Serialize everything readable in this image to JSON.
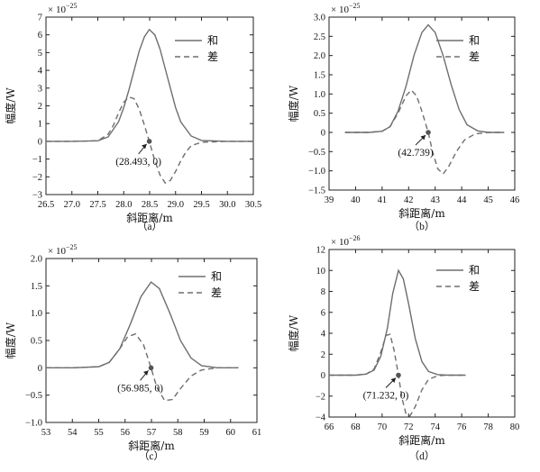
{
  "chart_data": [
    {
      "type": "line",
      "caption": "（a）",
      "xlabel": "斜距离/m",
      "ylabel": "幅度/W",
      "multiplier_base": "× 10",
      "multiplier_exp": "−25",
      "xlim": [
        26.5,
        30.5
      ],
      "ylim": [
        -3,
        7
      ],
      "xticks": [
        26.5,
        27.0,
        27.5,
        28.0,
        28.5,
        29.0,
        29.5,
        30.0,
        30.5
      ],
      "xtick_labels": [
        "26.5",
        "27.0",
        "27.5",
        "28.0",
        "28.5",
        "29.0",
        "29.5",
        "30.0",
        "30.5"
      ],
      "yticks": [
        -3,
        -2,
        -1,
        0,
        1,
        2,
        3,
        4,
        5,
        6,
        7
      ],
      "ytick_labels": [
        "−3",
        "−2",
        "−1",
        "0",
        "1",
        "2",
        "3",
        "4",
        "5",
        "6",
        "7"
      ],
      "series": [
        {
          "name": "和",
          "style": "solid",
          "color": "#6e6e6e",
          "x": [
            26.5,
            27.0,
            27.5,
            27.7,
            27.9,
            28.0,
            28.1,
            28.2,
            28.3,
            28.4,
            28.493,
            28.6,
            28.7,
            28.8,
            28.9,
            29.0,
            29.1,
            29.3,
            29.5,
            30.0,
            30.5
          ],
          "y": [
            0,
            0,
            0.03,
            0.25,
            1.1,
            1.9,
            2.9,
            4.0,
            5.1,
            5.9,
            6.3,
            6.0,
            5.2,
            4.1,
            3.0,
            1.9,
            1.1,
            0.3,
            0.05,
            0,
            0
          ]
        },
        {
          "name": "差",
          "style": "dashed",
          "color": "#6e6e6e",
          "x": [
            26.5,
            27.0,
            27.5,
            27.7,
            27.8,
            27.9,
            28.0,
            28.1,
            28.2,
            28.3,
            28.4,
            28.493,
            28.6,
            28.7,
            28.8,
            28.9,
            29.0,
            29.1,
            29.2,
            29.3,
            29.5,
            30.0,
            30.5
          ],
          "y": [
            0,
            0,
            0.03,
            0.4,
            0.9,
            1.6,
            2.2,
            2.5,
            2.4,
            1.8,
            0.9,
            0,
            -1.1,
            -1.9,
            -2.35,
            -2.2,
            -1.7,
            -1.1,
            -0.6,
            -0.25,
            -0.05,
            0,
            0
          ]
        }
      ],
      "marker": {
        "x": 28.493,
        "y": 0
      },
      "annotation": "(28.493, 0)",
      "legend": [
        "和",
        "差"
      ]
    },
    {
      "type": "line",
      "caption": "（b）",
      "xlabel": "斜距离/m",
      "ylabel": "幅度/W",
      "multiplier_base": "× 10",
      "multiplier_exp": "−25",
      "xlim": [
        39,
        46
      ],
      "ylim": [
        -1.5,
        3.0
      ],
      "xticks": [
        39,
        40,
        41,
        42,
        43,
        44,
        45,
        46
      ],
      "xtick_labels": [
        "39",
        "40",
        "41",
        "42",
        "43",
        "44",
        "45",
        "46"
      ],
      "yticks": [
        -1.5,
        -1.0,
        -0.5,
        0,
        0.5,
        1.0,
        1.5,
        2.0,
        2.5,
        3.0
      ],
      "ytick_labels": [
        "−1.5",
        "−1.0",
        "−0.5",
        "0",
        "0.5",
        "1.0",
        "1.5",
        "2.0",
        "2.5",
        "3.0"
      ],
      "series": [
        {
          "name": "和",
          "style": "solid",
          "color": "#6e6e6e",
          "x": [
            39.6,
            40.5,
            41.0,
            41.3,
            41.6,
            41.9,
            42.2,
            42.5,
            42.739,
            43.0,
            43.3,
            43.6,
            43.9,
            44.2,
            44.6,
            45.0,
            45.6
          ],
          "y": [
            0,
            0,
            0.03,
            0.15,
            0.55,
            1.2,
            2.0,
            2.6,
            2.8,
            2.6,
            2.0,
            1.25,
            0.6,
            0.2,
            0.04,
            0,
            0
          ]
        },
        {
          "name": "差",
          "style": "dashed",
          "color": "#6e6e6e",
          "x": [
            39.6,
            40.5,
            41.0,
            41.3,
            41.6,
            41.9,
            42.1,
            42.3,
            42.5,
            42.739,
            42.9,
            43.1,
            43.3,
            43.5,
            43.8,
            44.1,
            44.5,
            45.0,
            45.6
          ],
          "y": [
            0,
            0,
            0.03,
            0.15,
            0.5,
            0.95,
            1.1,
            0.95,
            0.55,
            0,
            -0.5,
            -0.95,
            -1.08,
            -0.9,
            -0.5,
            -0.2,
            -0.04,
            0,
            0
          ]
        }
      ],
      "marker": {
        "x": 42.739,
        "y": 0
      },
      "annotation": "(42.739)",
      "legend": [
        "和",
        "差"
      ]
    },
    {
      "type": "line",
      "caption": "（c）",
      "xlabel": "斜距离/m",
      "ylabel": "幅度/W",
      "multiplier_base": "× 10",
      "multiplier_exp": "−25",
      "xlim": [
        53,
        61
      ],
      "ylim": [
        -1.0,
        2.0
      ],
      "xticks": [
        53,
        54,
        55,
        56,
        57,
        58,
        59,
        60,
        61
      ],
      "xtick_labels": [
        "53",
        "54",
        "55",
        "56",
        "57",
        "58",
        "59",
        "60",
        "61"
      ],
      "yticks": [
        -1.0,
        -0.5,
        0,
        0.5,
        1.0,
        1.5,
        2.0
      ],
      "ytick_labels": [
        "−1.0",
        "−0.5",
        "0",
        "0.5",
        "1.0",
        "1.5",
        "2.0"
      ],
      "series": [
        {
          "name": "和",
          "style": "solid",
          "color": "#6e6e6e",
          "x": [
            53,
            54,
            55,
            55.4,
            55.8,
            56.2,
            56.6,
            56.985,
            57.3,
            57.7,
            58.1,
            58.5,
            58.9,
            59.5,
            60.3
          ],
          "y": [
            0,
            0,
            0.02,
            0.1,
            0.35,
            0.8,
            1.3,
            1.57,
            1.45,
            1.0,
            0.5,
            0.18,
            0.04,
            0,
            0
          ]
        },
        {
          "name": "差",
          "style": "dashed",
          "color": "#6e6e6e",
          "x": [
            53,
            54,
            55,
            55.4,
            55.8,
            56.1,
            56.4,
            56.7,
            56.985,
            57.2,
            57.5,
            57.8,
            58.1,
            58.5,
            58.9,
            59.5,
            60.3
          ],
          "y": [
            0,
            0,
            0.02,
            0.1,
            0.35,
            0.57,
            0.62,
            0.42,
            0,
            -0.35,
            -0.6,
            -0.58,
            -0.38,
            -0.15,
            -0.04,
            0,
            0
          ]
        }
      ],
      "marker": {
        "x": 56.985,
        "y": 0
      },
      "annotation": "(56.985, 0)",
      "legend": [
        "和",
        "差"
      ]
    },
    {
      "type": "line",
      "caption": "（d）",
      "xlabel": "斜距离/m",
      "ylabel": "幅度/W",
      "multiplier_base": "× 10",
      "multiplier_exp": "−26",
      "xlim": [
        66,
        80
      ],
      "ylim": [
        -4,
        12
      ],
      "xticks": [
        66,
        68,
        70,
        72,
        74,
        76,
        78,
        80
      ],
      "xtick_labels": [
        "66",
        "68",
        "70",
        "72",
        "74",
        "76",
        "78",
        "80"
      ],
      "yticks": [
        -4,
        -2,
        0,
        2,
        4,
        6,
        8,
        10,
        12
      ],
      "ytick_labels": [
        "−4",
        "−2",
        "0",
        "2",
        "4",
        "6",
        "8",
        "10",
        "12"
      ],
      "series": [
        {
          "name": "和",
          "style": "solid",
          "color": "#6e6e6e",
          "x": [
            66,
            68,
            68.8,
            69.4,
            69.9,
            70.4,
            70.8,
            71.232,
            71.6,
            72.0,
            72.5,
            73.0,
            73.5,
            74.2,
            75.0,
            76.3
          ],
          "y": [
            0,
            0,
            0.1,
            0.5,
            1.8,
            4.5,
            7.8,
            10.0,
            9.2,
            6.8,
            3.5,
            1.3,
            0.35,
            0.05,
            0,
            0
          ]
        },
        {
          "name": "差",
          "style": "dashed",
          "color": "#6e6e6e",
          "x": [
            66,
            68,
            68.8,
            69.4,
            69.9,
            70.3,
            70.6,
            70.9,
            71.232,
            71.5,
            71.8,
            72.1,
            72.5,
            73.0,
            73.5,
            74.2,
            75.0,
            76.3
          ],
          "y": [
            0,
            0,
            0.1,
            0.6,
            2.2,
            3.8,
            3.9,
            2.4,
            0,
            -2.2,
            -3.7,
            -3.9,
            -3.0,
            -1.4,
            -0.4,
            -0.05,
            0,
            0
          ]
        }
      ],
      "marker": {
        "x": 71.232,
        "y": 0
      },
      "annotation": "(71.232, 0)",
      "legend": [
        "和",
        "差"
      ]
    }
  ]
}
